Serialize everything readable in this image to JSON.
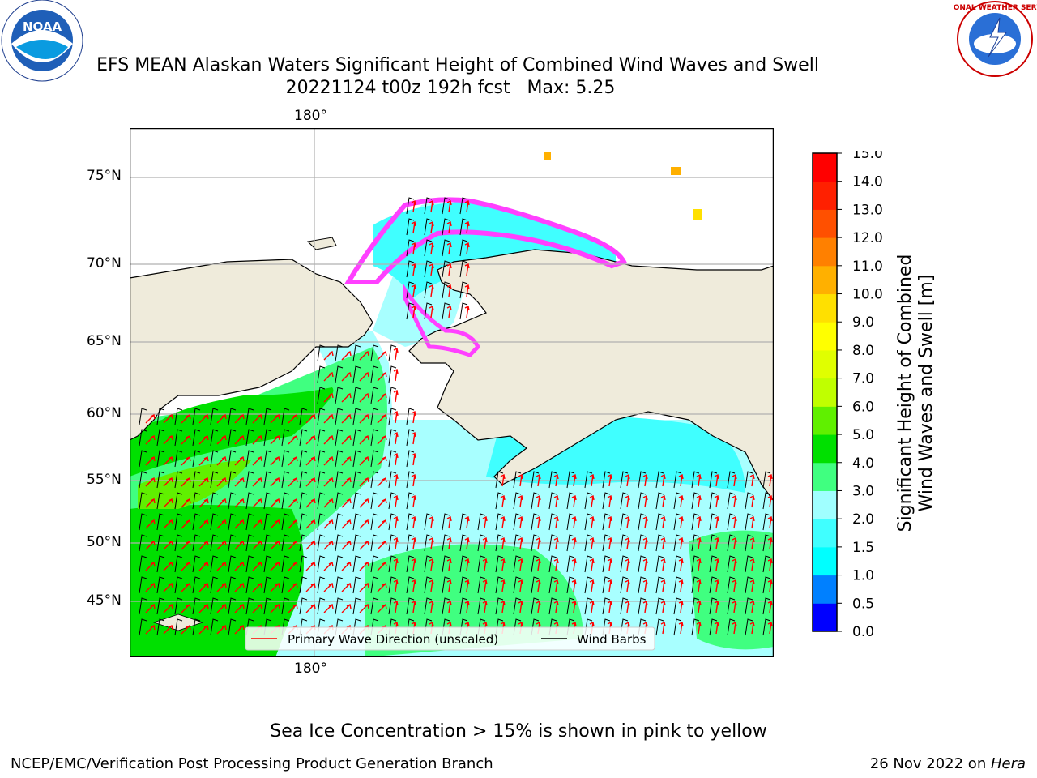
{
  "title": {
    "line1": "EFS MEAN Alaskan Waters Significant Height of Combined Wind Waves and Swell",
    "line2": "20221124 t00z 192h fcst   Max: 5.25"
  },
  "logos": {
    "left": "NOAA",
    "right": "NATIONAL WEATHER SERVICE"
  },
  "map": {
    "lon_label_top": "180°",
    "lon_label_bottom": "180°",
    "lat_labels": [
      "75°N",
      "70°N",
      "65°N",
      "60°N",
      "55°N",
      "50°N",
      "45°N"
    ],
    "colors": {
      "land": "#efebdb",
      "ocean_frame": "#ffffff",
      "grid": "#b0b0b0"
    }
  },
  "legend": {
    "wave_label": "Primary Wave Direction (unscaled)",
    "wind_label": "Wind Barbs",
    "wave_color": "#ff0000",
    "wind_color": "#000000"
  },
  "colorbar": {
    "title_line1": "Significant Height of Combined",
    "title_line2": "Wind Waves and Swell [m]",
    "ticks": [
      "15.0",
      "14.0",
      "13.0",
      "12.0",
      "11.0",
      "10.0",
      "9.0",
      "8.0",
      "7.0",
      "6.0",
      "5.0",
      "4.0",
      "3.0",
      "2.0",
      "1.5",
      "1.0",
      "0.5",
      "0.0"
    ],
    "colors": [
      "#0000ff",
      "#0080ff",
      "#00ffff",
      "#40ffff",
      "#a0ffff",
      "#40ff80",
      "#00e000",
      "#60f000",
      "#c0ff00",
      "#e0ff00",
      "#ffff00",
      "#ffe000",
      "#ffb000",
      "#ff8000",
      "#ff5000",
      "#ff2000",
      "#ff0000"
    ]
  },
  "footer": {
    "note": "Sea Ice Concentration > 15% is shown in pink to yellow",
    "credit": "NCEP/EMC/Verification Post Processing Product Generation Branch",
    "date": "26 Nov 2022 on ",
    "host": "Hera"
  }
}
